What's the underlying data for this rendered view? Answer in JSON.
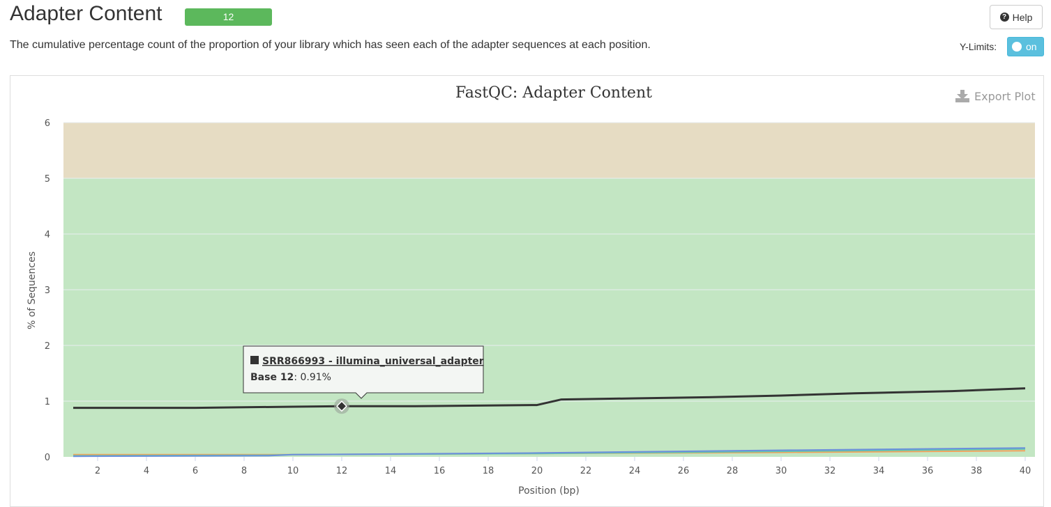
{
  "header": {
    "title": "Adapter Content",
    "badge": "12",
    "help_label": "Help",
    "description": "The cumulative percentage count of the proportion of your library which has seen each of the adapter sequences at each position.",
    "ylimits_label": "Y-Limits:",
    "ylimits_toggle": "on"
  },
  "plot": {
    "export_label": "Export Plot"
  },
  "tooltip": {
    "series": "SRR866993 - illumina_universal_adapter",
    "label": "Base 12",
    "value": ": 0.91%"
  },
  "chart_data": {
    "type": "line",
    "title": "FastQC: Adapter Content",
    "xlabel": "Position (bp)",
    "ylabel": "% of Sequences",
    "xlim": [
      1,
      40
    ],
    "ylim": [
      0,
      6
    ],
    "xticks": [
      2,
      4,
      6,
      8,
      10,
      12,
      14,
      16,
      18,
      20,
      22,
      24,
      26,
      28,
      30,
      32,
      34,
      36,
      38,
      40
    ],
    "yticks": [
      0,
      1,
      2,
      3,
      4,
      5,
      6
    ],
    "bands": [
      {
        "from": 0,
        "to": 5,
        "color": "#c3e6c3"
      },
      {
        "from": 5,
        "to": 6,
        "color": "#e6dcc3"
      }
    ],
    "grid": true,
    "series": [
      {
        "name": "SRR866993 - illumina_universal_adapter",
        "color": "#333333",
        "x": [
          1,
          6,
          10,
          12,
          15,
          20,
          21,
          24,
          27,
          30,
          33,
          37,
          40
        ],
        "values": [
          0.88,
          0.88,
          0.9,
          0.91,
          0.91,
          0.93,
          1.03,
          1.05,
          1.07,
          1.1,
          1.14,
          1.18,
          1.23
        ]
      },
      {
        "color": "#6d8fdb",
        "x": [
          1,
          9,
          10,
          20,
          28,
          40
        ],
        "values": [
          0.01,
          0.02,
          0.04,
          0.07,
          0.11,
          0.16
        ]
      },
      {
        "color": "#5fc7b0",
        "x": [
          1,
          9,
          10,
          20,
          28,
          40
        ],
        "values": [
          0.02,
          0.03,
          0.04,
          0.06,
          0.09,
          0.14
        ]
      },
      {
        "color": "#f0a35e",
        "x": [
          1,
          10,
          20,
          30,
          40
        ],
        "values": [
          0.04,
          0.04,
          0.06,
          0.08,
          0.11
        ]
      }
    ],
    "highlight": {
      "x": 12,
      "y": 0.91
    }
  }
}
